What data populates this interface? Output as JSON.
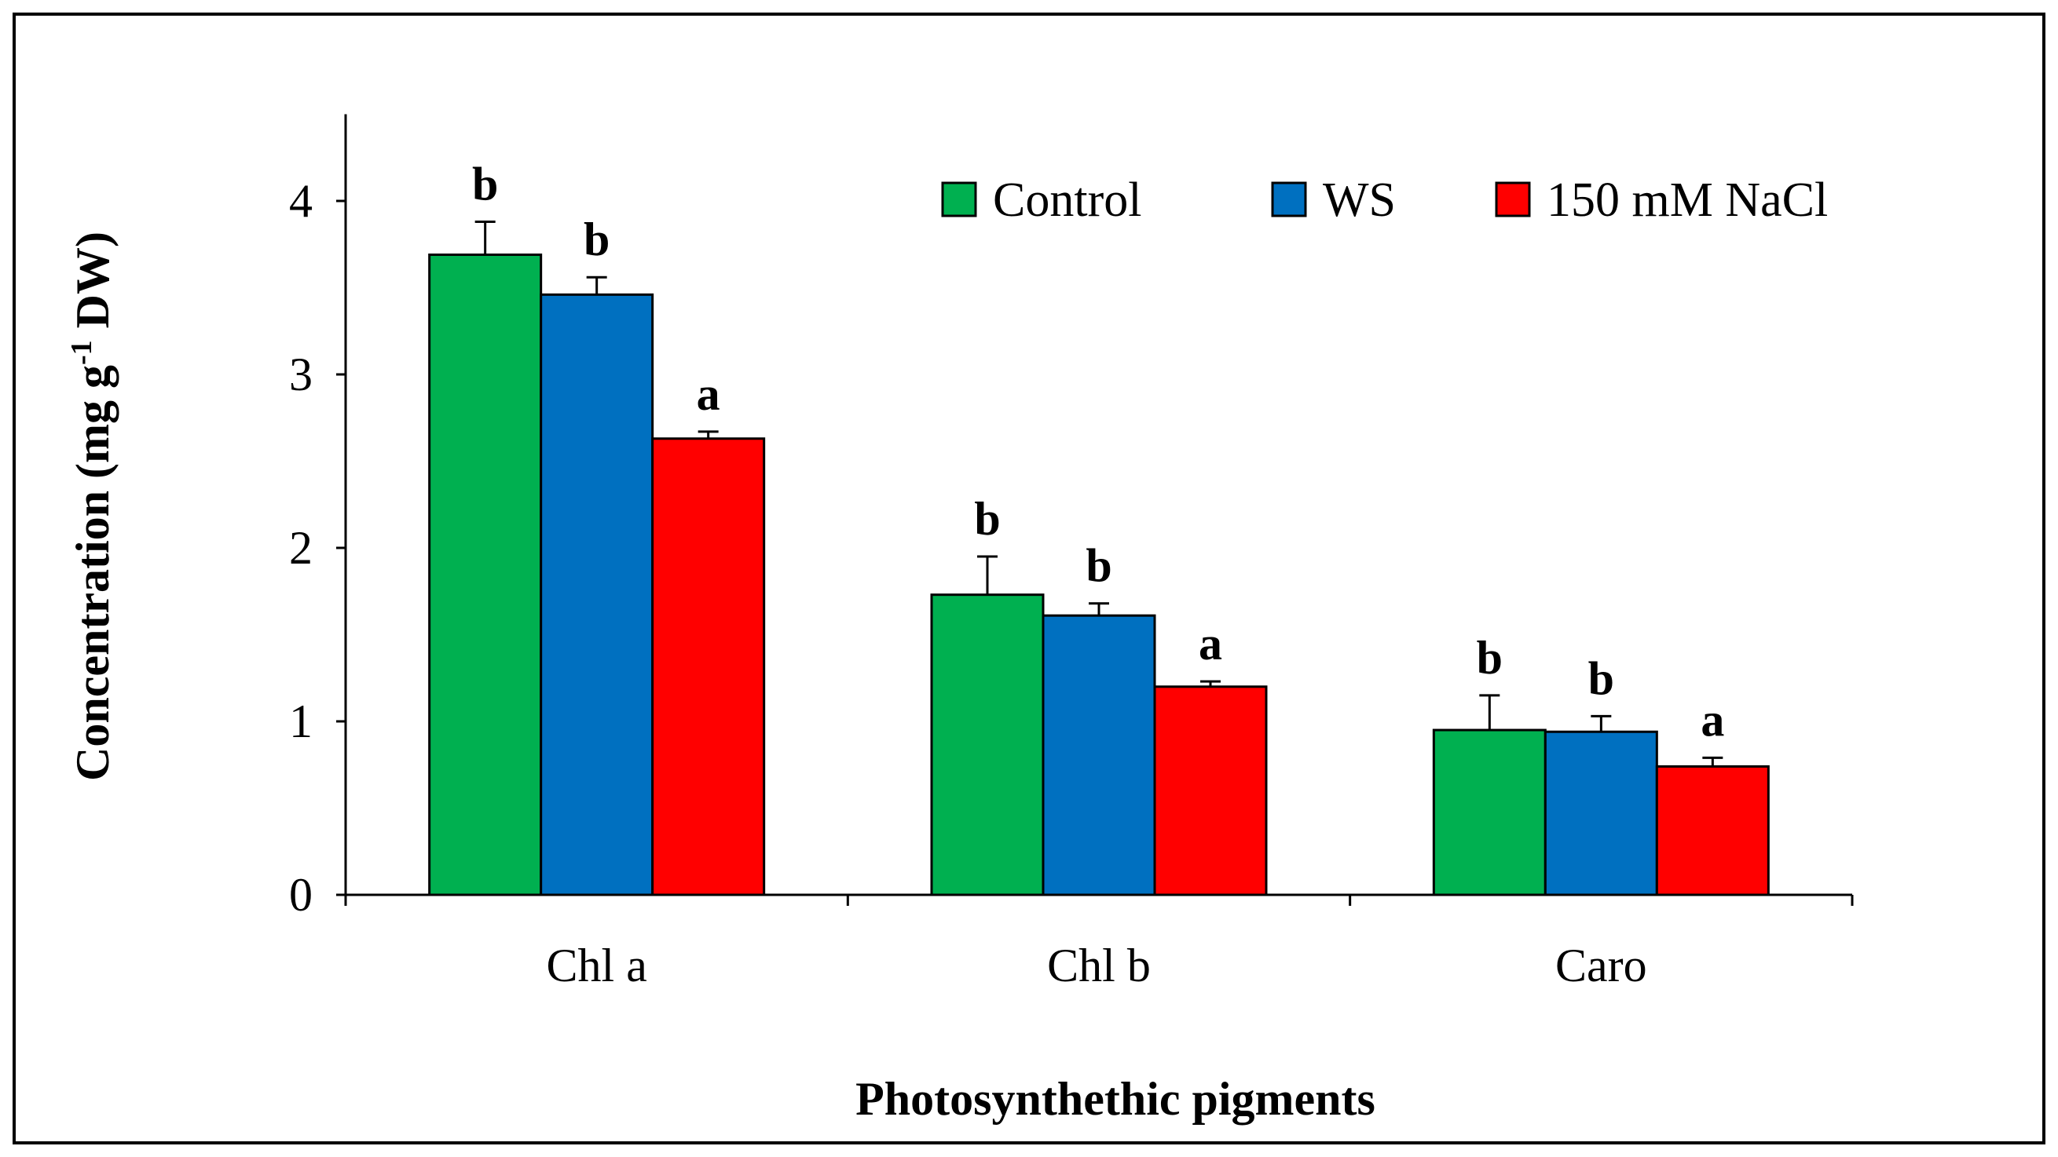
{
  "chart_data": {
    "type": "bar",
    "title": "",
    "xlabel": "Photosynthethic pigments",
    "ylabel": "Concentration (mg g",
    "ylabel_sup": "-1",
    "ylabel_tail": " DW)",
    "ylim": [
      0,
      4.5
    ],
    "yticks": [
      0,
      1,
      2,
      3,
      4
    ],
    "yticklabels": [
      "0",
      "1",
      "2",
      "3",
      "4"
    ],
    "categories": [
      "Chl a",
      "Chl b",
      "Caro"
    ],
    "legend_position": "top-right",
    "series": [
      {
        "name": "Control",
        "color": "#00b050",
        "values": [
          3.69,
          1.73,
          0.95
        ],
        "errors": [
          0.19,
          0.22,
          0.2
        ],
        "significance": [
          "b",
          "b",
          "b"
        ]
      },
      {
        "name": "WS",
        "color": "#0070c0",
        "values": [
          3.46,
          1.61,
          0.94
        ],
        "errors": [
          0.1,
          0.07,
          0.09
        ],
        "significance": [
          "b",
          "b",
          "b"
        ]
      },
      {
        "name": "150 mM NaCl",
        "color": "#ff0000",
        "values": [
          2.63,
          1.2,
          0.74
        ],
        "errors": [
          0.04,
          0.03,
          0.05
        ],
        "significance": [
          "a",
          "a",
          "a"
        ]
      }
    ]
  }
}
